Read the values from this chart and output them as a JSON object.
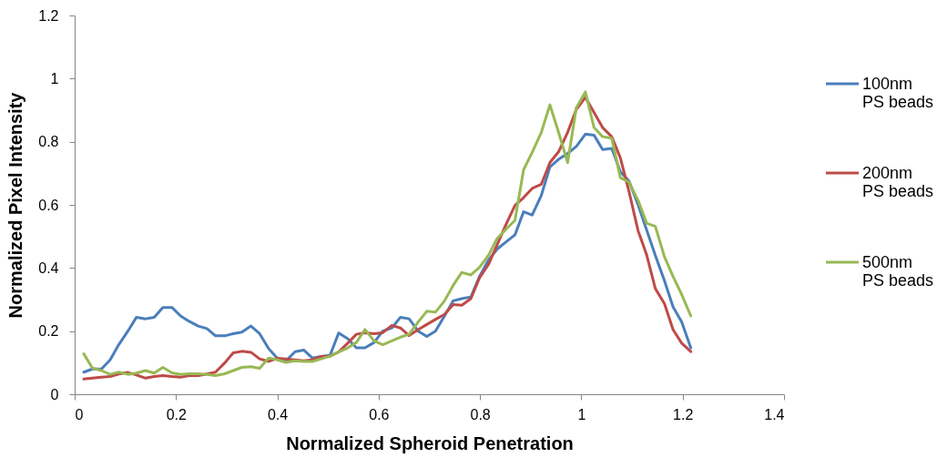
{
  "chart_data": {
    "type": "line",
    "xlabel": "Normalized Spheroid Penetration",
    "ylabel": "Normalized Pixel Intensity",
    "xlim": [
      0,
      1.4
    ],
    "xticks": [
      0,
      0.2,
      0.4,
      0.6,
      0.8,
      1,
      1.2,
      1.4
    ],
    "ylim": [
      0,
      1.2
    ],
    "yticks": [
      0,
      0.2,
      0.4,
      0.6,
      0.8,
      1,
      1.2
    ],
    "grid": false,
    "legend": "right",
    "x": [
      0.018,
      0.035,
      0.053,
      0.07,
      0.087,
      0.105,
      0.122,
      0.14,
      0.157,
      0.174,
      0.192,
      0.209,
      0.226,
      0.244,
      0.261,
      0.278,
      0.296,
      0.313,
      0.33,
      0.348,
      0.365,
      0.383,
      0.4,
      0.417,
      0.435,
      0.452,
      0.469,
      0.487,
      0.504,
      0.521,
      0.539,
      0.556,
      0.573,
      0.591,
      0.608,
      0.626,
      0.643,
      0.66,
      0.678,
      0.695,
      0.712,
      0.73,
      0.747,
      0.764,
      0.782,
      0.799,
      0.817,
      0.834,
      0.851,
      0.869,
      0.886,
      0.903,
      0.921,
      0.938,
      0.955,
      0.973,
      0.99,
      1.008,
      1.025,
      1.042,
      1.06,
      1.077,
      1.094,
      1.112,
      1.129,
      1.146,
      1.164,
      1.181,
      1.198,
      1.216
    ],
    "series": [
      {
        "name": "100nm PS beads",
        "color": "#4a7ebb",
        "values": [
          0.07,
          0.08,
          0.08,
          0.109,
          0.157,
          0.2,
          0.244,
          0.239,
          0.244,
          0.275,
          0.275,
          0.248,
          0.231,
          0.216,
          0.208,
          0.185,
          0.185,
          0.192,
          0.197,
          0.216,
          0.192,
          0.144,
          0.114,
          0.106,
          0.135,
          0.14,
          0.115,
          0.12,
          0.123,
          0.194,
          0.176,
          0.147,
          0.147,
          0.164,
          0.2,
          0.21,
          0.244,
          0.239,
          0.2,
          0.183,
          0.2,
          0.248,
          0.296,
          0.303,
          0.308,
          0.373,
          0.426,
          0.46,
          0.482,
          0.505,
          0.578,
          0.568,
          0.63,
          0.72,
          0.744,
          0.763,
          0.785,
          0.824,
          0.821,
          0.775,
          0.779,
          0.705,
          0.676,
          0.6,
          0.52,
          0.44,
          0.36,
          0.277,
          0.229,
          0.147
        ]
      },
      {
        "name": "200nm PS beads",
        "color": "#be4b48",
        "values": [
          0.048,
          0.051,
          0.054,
          0.056,
          0.064,
          0.069,
          0.061,
          0.051,
          0.056,
          0.059,
          0.056,
          0.054,
          0.059,
          0.059,
          0.064,
          0.07,
          0.099,
          0.131,
          0.136,
          0.133,
          0.112,
          0.104,
          0.114,
          0.112,
          0.109,
          0.106,
          0.109,
          0.12,
          0.121,
          0.134,
          0.162,
          0.19,
          0.195,
          0.192,
          0.195,
          0.218,
          0.21,
          0.186,
          0.205,
          0.221,
          0.237,
          0.253,
          0.284,
          0.282,
          0.303,
          0.369,
          0.412,
          0.474,
          0.537,
          0.598,
          0.623,
          0.652,
          0.665,
          0.734,
          0.768,
          0.83,
          0.902,
          0.941,
          0.893,
          0.845,
          0.816,
          0.749,
          0.643,
          0.518,
          0.441,
          0.335,
          0.287,
          0.205,
          0.162,
          0.135
        ]
      },
      {
        "name": "500nm PS beads",
        "color": "#98b954",
        "values": [
          0.128,
          0.083,
          0.075,
          0.063,
          0.07,
          0.063,
          0.067,
          0.075,
          0.067,
          0.085,
          0.068,
          0.063,
          0.065,
          0.065,
          0.063,
          0.059,
          0.065,
          0.075,
          0.085,
          0.087,
          0.082,
          0.115,
          0.109,
          0.101,
          0.106,
          0.104,
          0.104,
          0.112,
          0.121,
          0.134,
          0.147,
          0.164,
          0.205,
          0.169,
          0.157,
          0.169,
          0.181,
          0.19,
          0.229,
          0.263,
          0.26,
          0.296,
          0.345,
          0.386,
          0.378,
          0.402,
          0.441,
          0.494,
          0.522,
          0.551,
          0.711,
          0.766,
          0.83,
          0.917,
          0.83,
          0.734,
          0.907,
          0.958,
          0.845,
          0.816,
          0.811,
          0.686,
          0.672,
          0.614,
          0.542,
          0.532,
          0.436,
          0.373,
          0.316,
          0.248
        ]
      }
    ]
  }
}
